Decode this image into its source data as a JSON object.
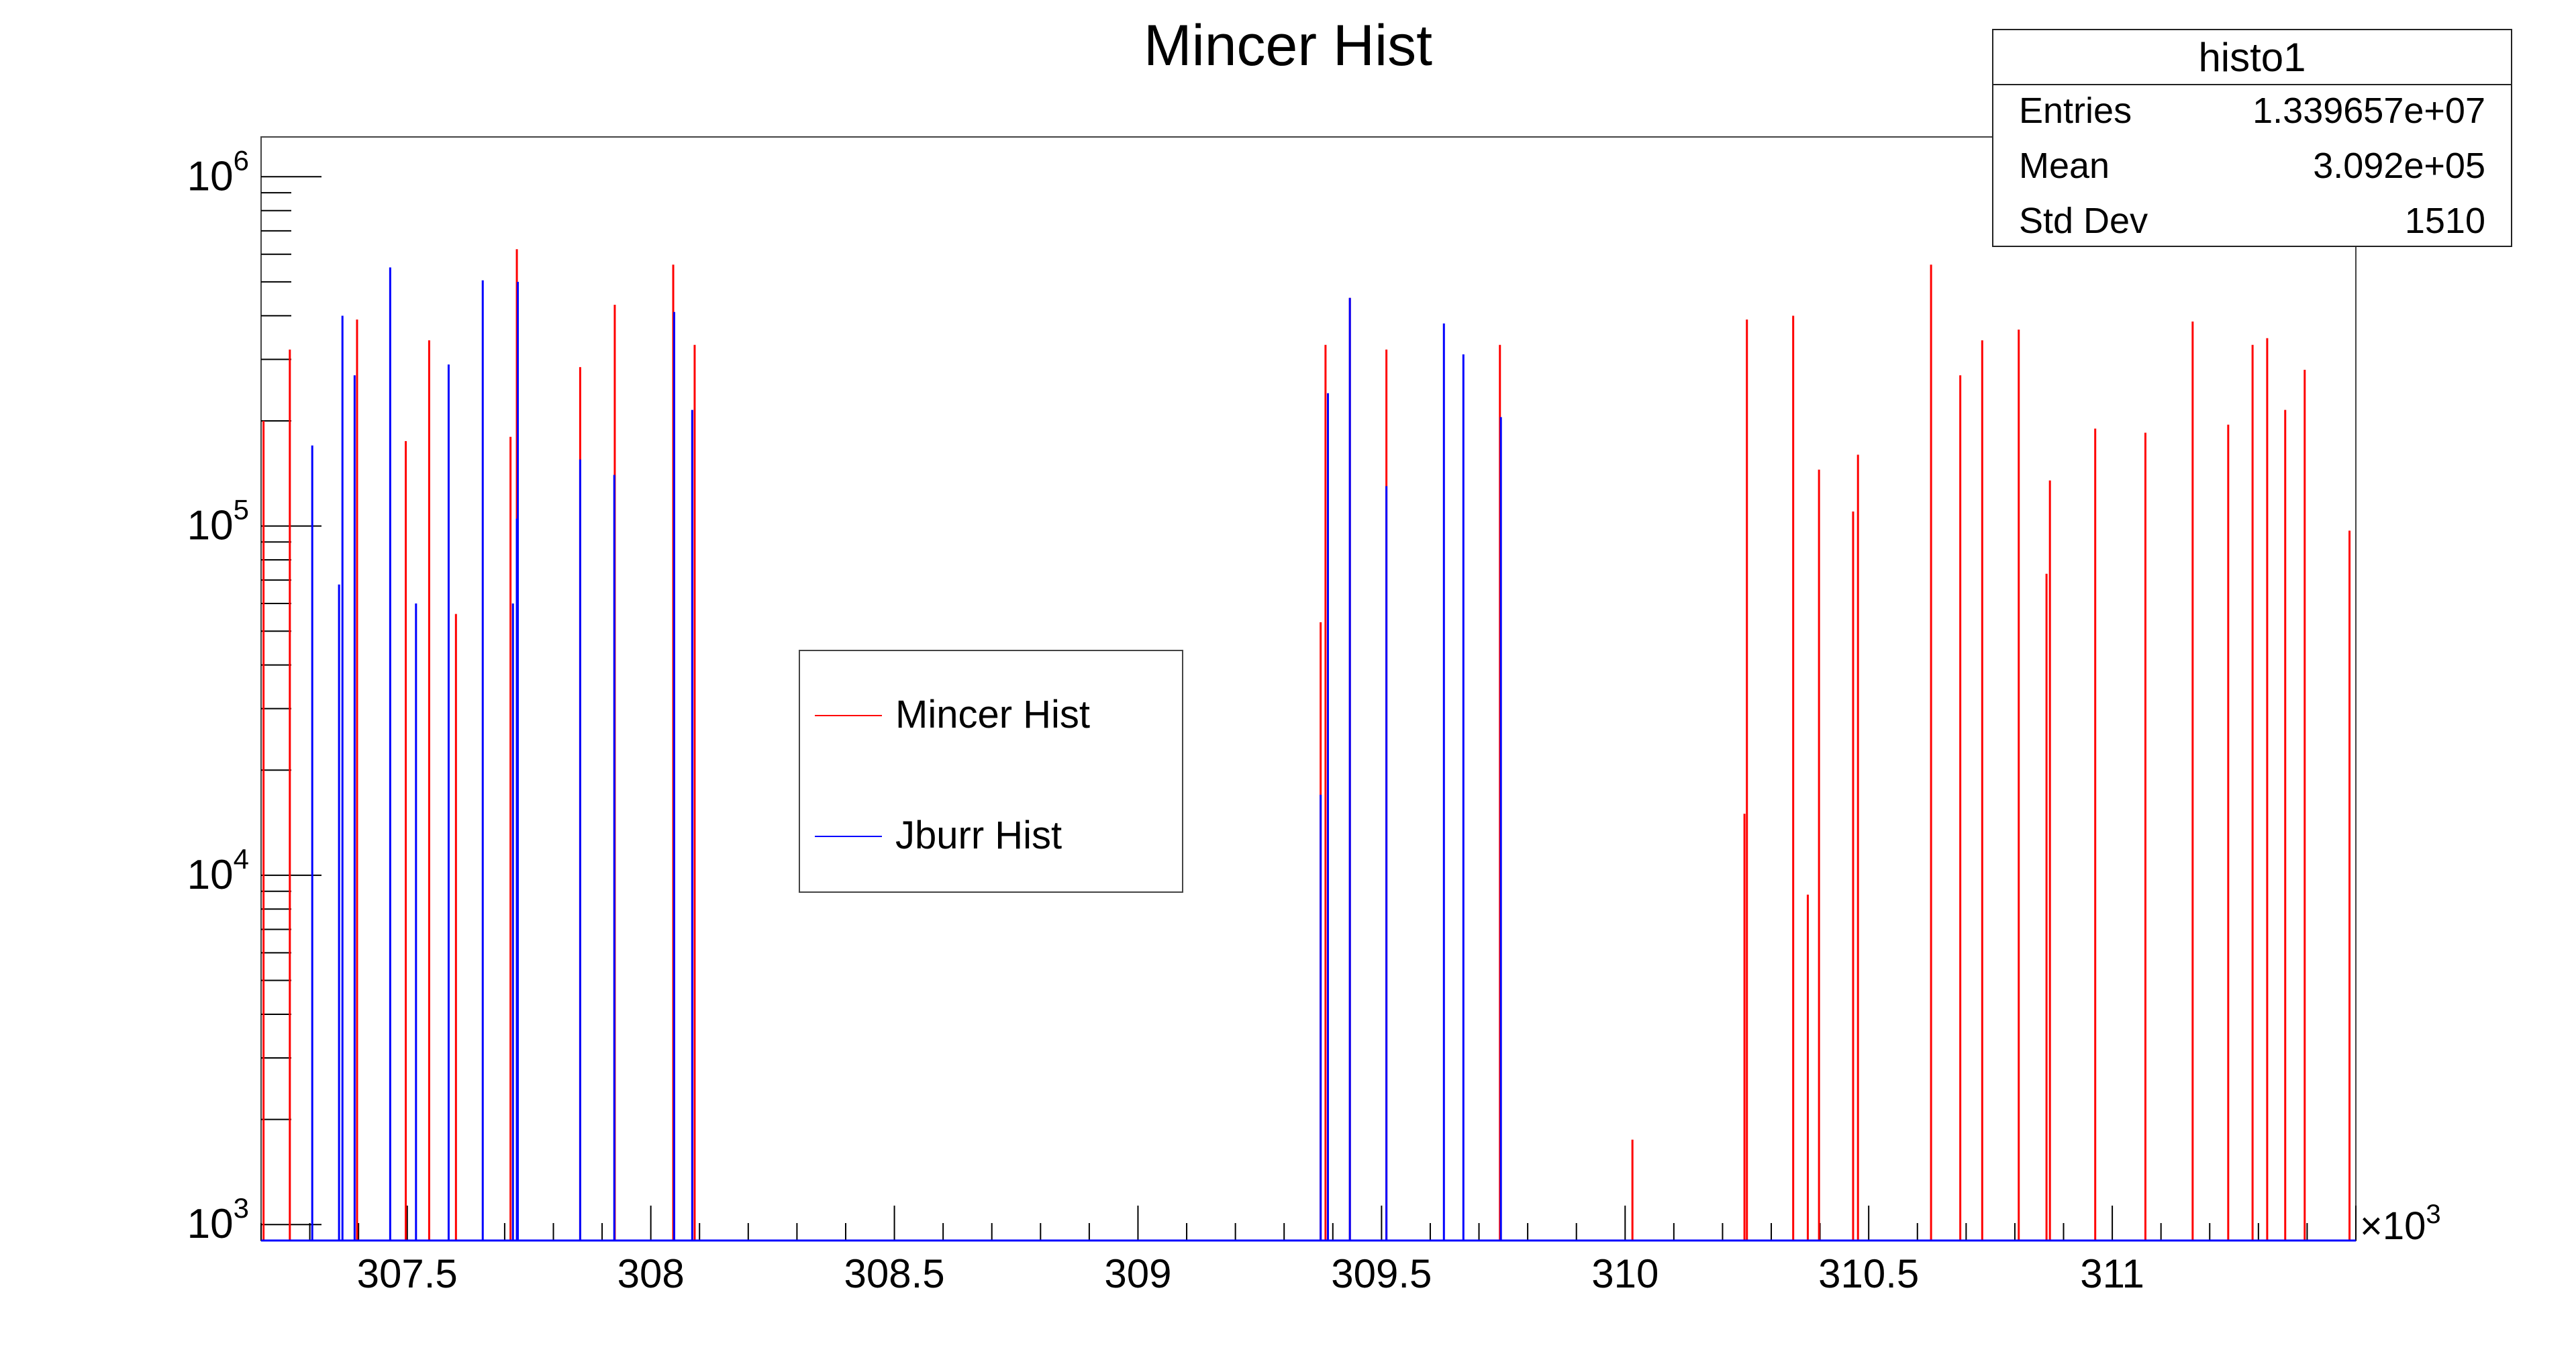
{
  "chart_data": {
    "type": "bar",
    "title": "Mincer Hist",
    "xlabel": "",
    "ylabel": "",
    "x_scale_label": "×10",
    "x_scale_exponent": "3",
    "xlim": [
      307.2,
      311.5
    ],
    "ylim": [
      900,
      1300000
    ],
    "y_scale": "log",
    "x_ticks": [
      "307.5",
      "308",
      "308.5",
      "309",
      "309.5",
      "310",
      "310.5",
      "311"
    ],
    "x_tick_values": [
      307.5,
      308,
      308.5,
      309,
      309.5,
      310,
      310.5,
      311
    ],
    "y_ticks": [
      {
        "base": "10",
        "exp": "3",
        "value": 1000
      },
      {
        "base": "10",
        "exp": "4",
        "value": 10000
      },
      {
        "base": "10",
        "exp": "5",
        "value": 100000
      },
      {
        "base": "10",
        "exp": "6",
        "value": 1000000
      }
    ],
    "grid": false,
    "legend_position": "center-left",
    "series": [
      {
        "name": "Mincer Hist",
        "color": "#ff0000",
        "points": [
          [
            307.205,
            200000
          ],
          [
            307.259,
            320000
          ],
          [
            307.397,
            390000
          ],
          [
            307.497,
            175000
          ],
          [
            307.545,
            340000
          ],
          [
            307.6,
            56000
          ],
          [
            307.712,
            180000
          ],
          [
            307.725,
            620000
          ],
          [
            307.855,
            285000
          ],
          [
            307.926,
            430000
          ],
          [
            308.046,
            560000
          ],
          [
            308.09,
            330000
          ],
          [
            309.375,
            53000
          ],
          [
            309.385,
            330000
          ],
          [
            309.435,
            450000
          ],
          [
            309.51,
            320000
          ],
          [
            309.743,
            330000
          ],
          [
            310.015,
            1750
          ],
          [
            310.245,
            15000
          ],
          [
            310.25,
            390000
          ],
          [
            310.345,
            400000
          ],
          [
            310.375,
            8800
          ],
          [
            310.398,
            145000
          ],
          [
            310.468,
            110000
          ],
          [
            310.478,
            160000
          ],
          [
            310.628,
            560000
          ],
          [
            310.688,
            270000
          ],
          [
            310.733,
            340000
          ],
          [
            310.808,
            365000
          ],
          [
            310.865,
            73000
          ],
          [
            310.872,
            135000
          ],
          [
            310.965,
            190000
          ],
          [
            311.068,
            185000
          ],
          [
            311.165,
            385000
          ],
          [
            311.238,
            195000
          ],
          [
            311.288,
            330000
          ],
          [
            311.318,
            345000
          ],
          [
            311.355,
            215000
          ],
          [
            311.395,
            280000
          ],
          [
            311.487,
            97000
          ]
        ]
      },
      {
        "name": "Jburr Hist",
        "color": "#0000ff",
        "points": [
          [
            307.305,
            170000
          ],
          [
            307.36,
            68000
          ],
          [
            307.367,
            400000
          ],
          [
            307.392,
            270000
          ],
          [
            307.465,
            550000
          ],
          [
            307.518,
            60000
          ],
          [
            307.585,
            290000
          ],
          [
            307.655,
            505000
          ],
          [
            307.717,
            60000
          ],
          [
            307.725,
            105000
          ],
          [
            307.727,
            500000
          ],
          [
            307.855,
            155000
          ],
          [
            307.925,
            140000
          ],
          [
            308.048,
            410000
          ],
          [
            308.085,
            215000
          ],
          [
            309.375,
            17000
          ],
          [
            309.39,
            240000
          ],
          [
            309.435,
            450000
          ],
          [
            309.51,
            130000
          ],
          [
            309.628,
            380000
          ],
          [
            309.668,
            310000
          ],
          [
            309.745,
            205000
          ]
        ]
      }
    ]
  },
  "stats_box": {
    "title": "histo1",
    "rows": [
      {
        "label": "Entries",
        "value": "1.339657e+07"
      },
      {
        "label": "Mean",
        "value": "3.092e+05"
      },
      {
        "label": "Std Dev",
        "value": "1510"
      }
    ]
  },
  "legend": {
    "items": [
      {
        "label": "Mincer Hist",
        "color": "#ff0000"
      },
      {
        "label": "Jburr Hist",
        "color": "#0000ff"
      }
    ]
  }
}
